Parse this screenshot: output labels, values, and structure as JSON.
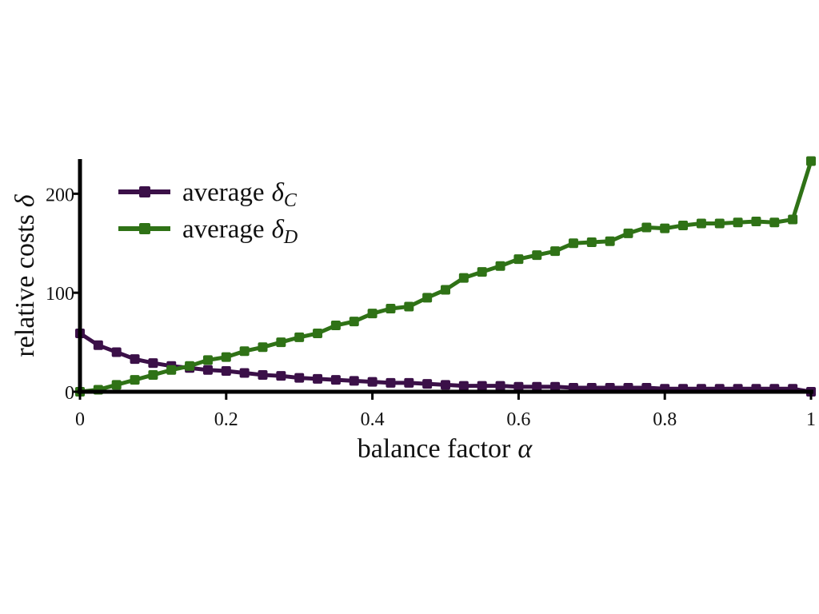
{
  "chart_data": {
    "type": "line",
    "xlabel_text": "balance factor",
    "xlabel_symbol": "α",
    "ylabel_text": "relative costs",
    "ylabel_symbol": "δ",
    "xlim": [
      0,
      1
    ],
    "ylim": [
      0,
      235
    ],
    "x_ticks": [
      {
        "value": 0,
        "label": "0"
      },
      {
        "value": 0.2,
        "label": "0.2"
      },
      {
        "value": 0.4,
        "label": "0.4"
      },
      {
        "value": 0.6,
        "label": "0.6"
      },
      {
        "value": 0.8,
        "label": "0.8"
      },
      {
        "value": 1,
        "label": "1"
      }
    ],
    "y_ticks": [
      {
        "value": 0,
        "label": "0"
      },
      {
        "value": 100,
        "label": "100"
      },
      {
        "value": 200,
        "label": "200"
      }
    ],
    "grid": false,
    "legend_position": "top-left",
    "x": [
      0,
      0.025,
      0.05,
      0.075,
      0.1,
      0.125,
      0.15,
      0.175,
      0.2,
      0.225,
      0.25,
      0.275,
      0.3,
      0.325,
      0.35,
      0.375,
      0.4,
      0.425,
      0.45,
      0.475,
      0.5,
      0.525,
      0.55,
      0.575,
      0.6,
      0.625,
      0.65,
      0.675,
      0.7,
      0.725,
      0.75,
      0.775,
      0.8,
      0.825,
      0.85,
      0.875,
      0.9,
      0.925,
      0.95,
      0.975,
      1
    ],
    "series": [
      {
        "name_text": "average",
        "name_symbol": "δ",
        "name_sub": "C",
        "color": "#3b1048",
        "values": [
          59,
          47,
          40,
          33,
          29,
          26,
          24,
          22,
          21,
          19,
          17,
          16,
          14,
          13,
          12,
          11,
          10,
          9,
          9,
          8,
          7,
          6,
          6,
          6,
          5,
          5,
          5,
          4,
          4,
          4,
          4,
          4,
          3,
          3,
          3,
          3,
          3,
          3,
          3,
          3,
          0
        ]
      },
      {
        "name_text": "average",
        "name_symbol": "δ",
        "name_sub": "D",
        "color": "#2f7216",
        "values": [
          0,
          2,
          7,
          12,
          17,
          22,
          26,
          32,
          35,
          41,
          45,
          50,
          55,
          59,
          67,
          71,
          79,
          84,
          86,
          95,
          103,
          115,
          121,
          127,
          134,
          138,
          142,
          150,
          151,
          152,
          160,
          166,
          165,
          168,
          170,
          170,
          171,
          172,
          171,
          174,
          233
        ]
      }
    ]
  }
}
